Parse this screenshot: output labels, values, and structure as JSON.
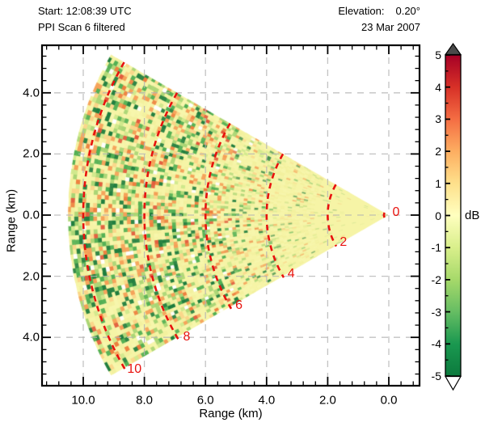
{
  "header": {
    "start": "Start: 12:08:39 UTC",
    "scan": "PPI Scan 6 filtered",
    "elevation_label": "Elevation:",
    "elevation_value": "0.20°",
    "date": "23 Mar 2007"
  },
  "chart_data": {
    "type": "heatmap",
    "subtype": "radar-PPI-sector-scan",
    "title": "PPI Scan 6 filtered",
    "start_time": "12:08:39 UTC",
    "date": "23 Mar 2007",
    "elevation_deg": 0.2,
    "xlabel": "Range (km)",
    "ylabel": "Range (km)",
    "x_tick_labels": [
      "10.0",
      "8.0",
      "6.0",
      "4.0",
      "2.0",
      "0.0"
    ],
    "x_tick_km": [
      10,
      8,
      6,
      4,
      2,
      0
    ],
    "y_tick_labels": [
      "4.0",
      "2.0",
      "0.0",
      "2.0",
      "4.0"
    ],
    "y_tick_km": [
      4,
      2,
      0,
      -2,
      -4
    ],
    "x_range_km": [
      11.35,
      -1.0
    ],
    "y_range_km": [
      -5.6,
      5.6
    ],
    "minor_tick_step_km": 0.4,
    "grid": "dashed gray at every major tick",
    "sector": {
      "origin_km": [
        0,
        0
      ],
      "pointing": "west",
      "half_angle_deg": 30,
      "max_range_km": 10.5
    },
    "range_rings": {
      "ranges_km": [
        0,
        2,
        4,
        6,
        8,
        10
      ],
      "labels": [
        "0",
        "2",
        "4",
        "6",
        "8",
        "10"
      ],
      "style": "red dashed arcs centred on radar origin, labels at lower ends"
    },
    "field": {
      "units": "dB",
      "description": "speckle noise field centred near 0 dB (pale yellow); variance and green/orange speckle increase with range from radar",
      "noise_seed": 20070323
    },
    "colorbar": {
      "label": "dB",
      "min": -5,
      "max": 5,
      "tick_values": [
        5,
        4,
        3,
        2,
        1,
        0,
        -1,
        -2,
        -3,
        -4,
        -5
      ],
      "tick_labels": [
        "5",
        "4",
        "3",
        "2",
        "1",
        "0",
        "-1",
        "-2",
        "-3",
        "-4",
        "-5"
      ],
      "minor_step": 0.5,
      "gradient_top_to_bottom": [
        "#a50026",
        "#d73027",
        "#f46d43",
        "#fdae61",
        "#fee08b",
        "#ffffbf",
        "#d9ef8b",
        "#a6d96a",
        "#66bd63",
        "#1a9850",
        "#0c7a3d"
      ],
      "top_arrow_fill": "#4a4a4a",
      "bottom_arrow_fill": "#ffffff"
    },
    "noise_palette": {
      "base": [
        "#f6f4a6",
        "#f2f09e",
        "#f8f6ae"
      ],
      "speckle": [
        "#1d7c3d",
        "#4fae52",
        "#a8d474",
        "#cfe88c",
        "#fbd488",
        "#f59e56",
        "#ed7d3c",
        "#e1573a",
        "#ffffff"
      ]
    }
  },
  "colors": {
    "annotation_red": "#e8120e",
    "grid": "#b3b3b3",
    "frame": "#000000",
    "background": "#ffffff"
  }
}
